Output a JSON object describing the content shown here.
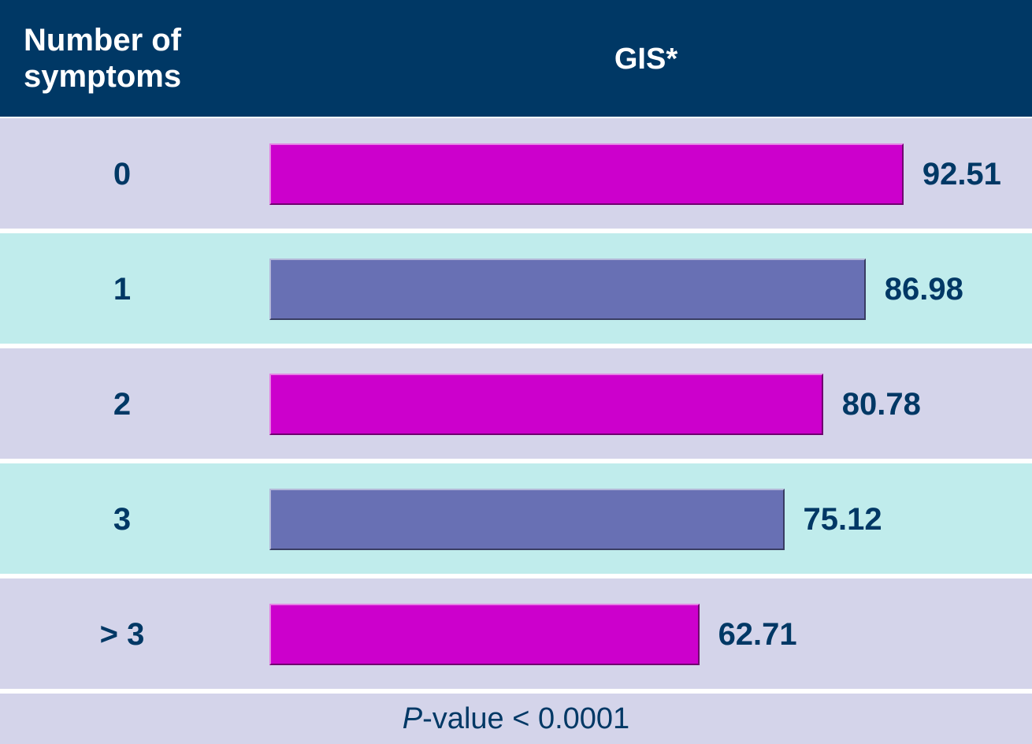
{
  "chart_data": {
    "type": "bar",
    "category_header": "Number of symptoms",
    "value_header": "GIS*",
    "categories": [
      "0",
      "1",
      "2",
      "3",
      "> 3"
    ],
    "values": [
      92.51,
      86.98,
      80.78,
      75.12,
      62.71
    ],
    "colors": [
      "#cc00cc",
      "#6870b4",
      "#cc00cc",
      "#6870b4",
      "#cc00cc"
    ],
    "row_colors": [
      "#d4d4ea",
      "#c0ecec",
      "#d4d4ea",
      "#c0ecec",
      "#d4d4ea"
    ],
    "xlim": [
      0,
      100
    ],
    "footnote": {
      "italic": "P",
      "text": "-value < 0.0001"
    }
  }
}
